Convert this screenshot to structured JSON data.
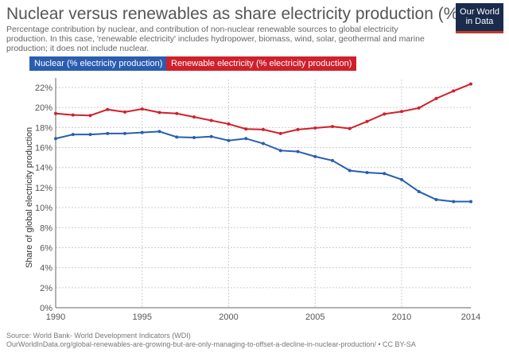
{
  "header": {
    "title": "Nuclear versus renewables as share electricity production (%)",
    "subtitle": "Percentage contribution by nuclear, and contribution of non-nuclear renewable sources to global electricity production. In this case, 'renewable electricity' includes hydropower, biomass, wind, solar, geothermal and marine production; it does not include nuclear.",
    "logo": "Our World in Data"
  },
  "footer": {
    "source": "Source: World Bank- World Development Indicators (WDI)",
    "url": "OurWorldInData.org/global-renewables-are-growing-but-are-only-managing-to-offset-a-decline-in-nuclear-production/ • CC BY-SA"
  },
  "chart_data": {
    "type": "line",
    "ylabel": "Share of global electricity production",
    "xlim": [
      1990,
      2014
    ],
    "ylim": [
      0,
      22
    ],
    "x_ticks": [
      "1990",
      "1995",
      "2000",
      "2005",
      "2010",
      "2014"
    ],
    "y_ticks": [
      "0%",
      "2%",
      "4%",
      "6%",
      "8%",
      "10%",
      "12%",
      "14%",
      "16%",
      "18%",
      "20%",
      "22%"
    ],
    "grid": true,
    "legend_position": "top",
    "x": [
      1990,
      1991,
      1992,
      1993,
      1994,
      1995,
      1996,
      1997,
      1998,
      1999,
      2000,
      2001,
      2002,
      2003,
      2004,
      2005,
      2006,
      2007,
      2008,
      2009,
      2010,
      2011,
      2012,
      2013,
      2014
    ],
    "series": [
      {
        "name": "Nuclear (% electricity production)",
        "color": "#2a5db0",
        "values": [
          16.9,
          17.3,
          17.3,
          17.4,
          17.4,
          17.5,
          17.6,
          17.05,
          17.0,
          17.1,
          16.7,
          16.9,
          16.4,
          15.7,
          15.6,
          15.1,
          14.7,
          13.7,
          13.5,
          13.4,
          12.8,
          11.6,
          10.8,
          10.6,
          10.6
        ]
      },
      {
        "name": "Renewable electricity (% electricity production)",
        "color": "#d0202c",
        "values": [
          19.4,
          19.25,
          19.2,
          19.8,
          19.55,
          19.85,
          19.5,
          19.4,
          19.05,
          18.7,
          18.35,
          17.85,
          17.8,
          17.4,
          17.8,
          17.95,
          18.1,
          17.9,
          18.6,
          19.35,
          19.6,
          19.95,
          20.9,
          21.65,
          22.35
        ]
      }
    ]
  }
}
